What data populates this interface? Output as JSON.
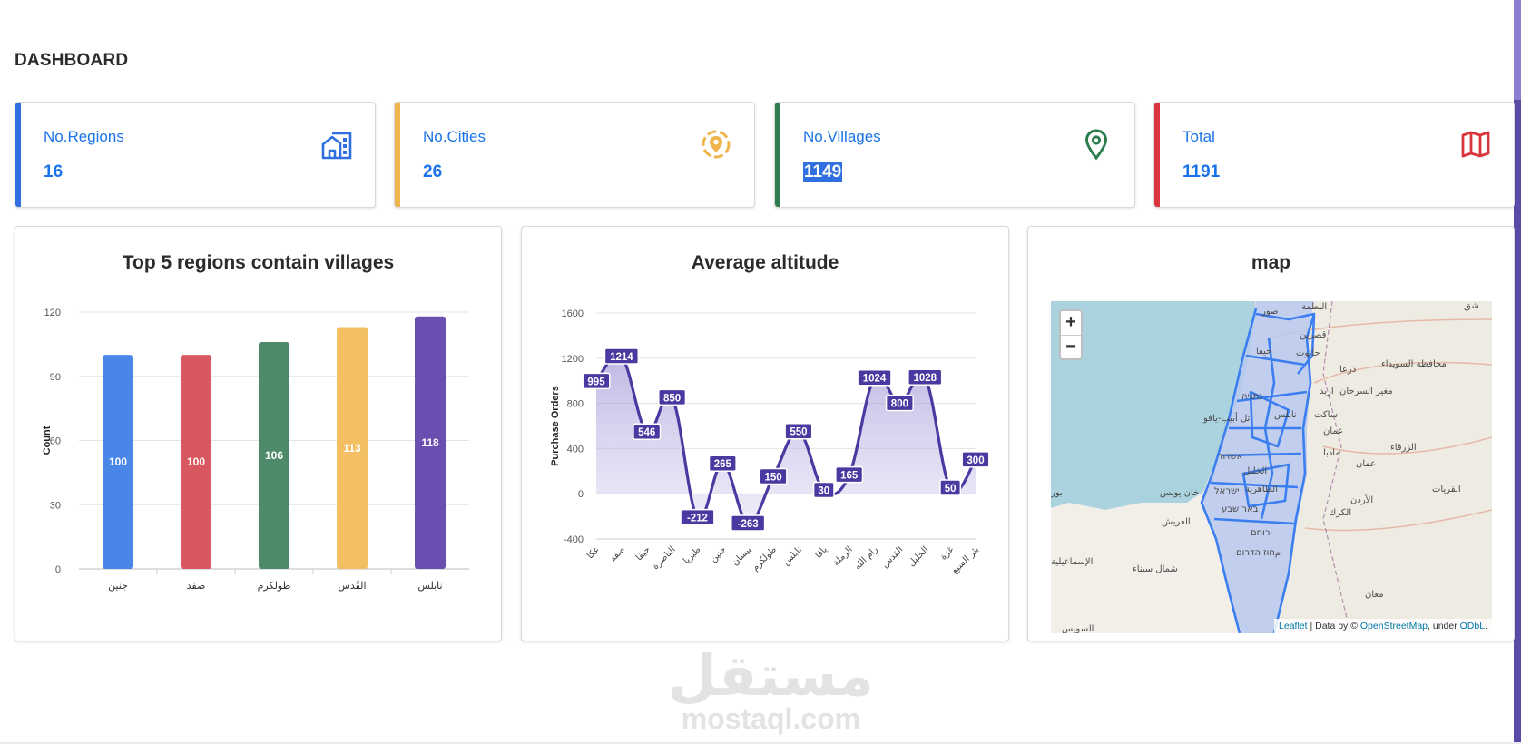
{
  "page": {
    "title": "DASHBOARD"
  },
  "stats": [
    {
      "label": "No.Regions",
      "value": "16",
      "color": "#2f6fe0",
      "icon": "building-icon"
    },
    {
      "label": "No.Cities",
      "value": "26",
      "color": "#f0b44c",
      "icon": "location-target-icon"
    },
    {
      "label": "No.Villages",
      "value": "1149",
      "color": "#2e7d4f",
      "icon": "map-pin-icon"
    },
    {
      "label": "Total",
      "value": "1191",
      "color": "#d9363e",
      "icon": "map-icon"
    }
  ],
  "panels": {
    "villages_title": "Top 5 regions contain villages",
    "altitude_title": "Average altitude",
    "map_title": "map"
  },
  "chart_data": [
    {
      "type": "bar",
      "title": "Top 5 regions contain villages",
      "ylabel": "Count",
      "xlabel": "",
      "categories": [
        "جنين",
        "صفد",
        "طولكرم",
        "القُدس",
        "نابلس"
      ],
      "values": [
        100,
        100,
        106,
        113,
        118
      ],
      "colors": [
        "#4a86e8",
        "#d9575e",
        "#4e8a69",
        "#f3bf63",
        "#6a4fb0"
      ],
      "ylim": [
        0,
        120
      ],
      "yticks": [
        0,
        30,
        60,
        90,
        120
      ],
      "grid": true,
      "data_labels": true
    },
    {
      "type": "area",
      "title": "Average altitude",
      "ylabel": "Purchase Orders",
      "xlabel": "",
      "categories": [
        "عكا",
        "صفد",
        "حيفا",
        "الناصرة",
        "طبريا",
        "جنين",
        "بيسان",
        "طولكرم",
        "نابلس",
        "يافا",
        "الرملة",
        "رام الله",
        "القدس",
        "الخليل",
        "غزة",
        "بئر السبع"
      ],
      "values": [
        995,
        1214,
        546,
        850,
        -212,
        265,
        -263,
        150,
        550,
        30,
        165,
        1024,
        800,
        1028,
        50,
        300
      ],
      "color": "#4b38a0",
      "ylim": [
        -400,
        1600
      ],
      "yticks": [
        -400,
        0,
        400,
        800,
        1200,
        1600
      ],
      "grid": true,
      "data_labels": true
    }
  ],
  "map": {
    "zoom_in": "+",
    "zoom_out": "−",
    "attribution": {
      "leaflet": "Leaflet",
      "sep1": " | Data by © ",
      "osm": "OpenStreetMap",
      "sep2": ", under ",
      "odbl": "ODbL",
      "end": "."
    },
    "labels": [
      "صور",
      "البطمة",
      "شق",
      "قصرين",
      "حيفا",
      "حانوت",
      "درعا",
      "محافظة السويداء",
      "اربد",
      "مغير السرحان",
      "נתניה",
      "تل أبيب-يافو",
      "نابلس",
      "ساكت",
      "عمان",
      "الزرقاء",
      "مادبا",
      "אשדוד",
      "عمان",
      "الخليل",
      "الظاهرية",
      "الأردن",
      "القريات",
      "بور",
      "خان يونس",
      "ישראל",
      "באר שבע",
      "العريش",
      "الكرك",
      "ירוחם",
      "مחוז הדרום",
      "الإسماعيلية",
      "شمال سيناء",
      "معان",
      "السويس"
    ]
  },
  "watermark": {
    "arabic": "مستقل",
    "latin": "mostaql.com"
  }
}
